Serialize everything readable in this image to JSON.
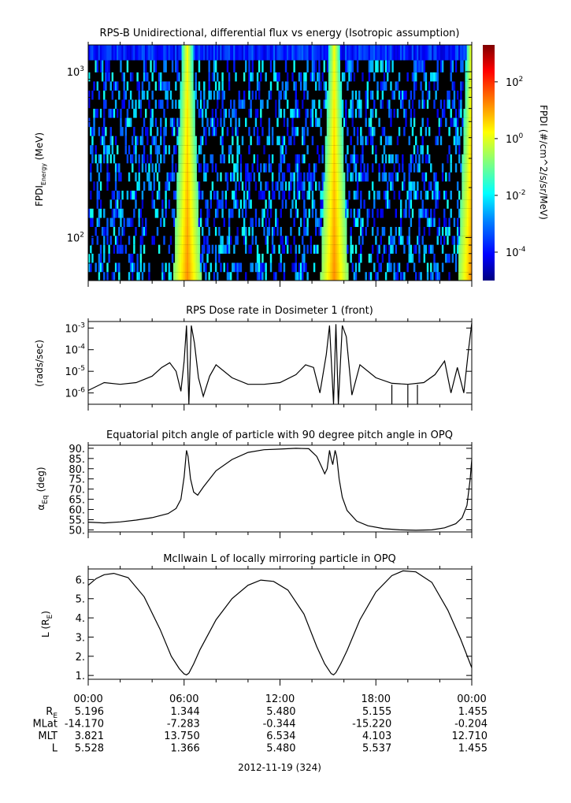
{
  "chart_data": [
    {
      "type": "heatmap",
      "title": "RPS-B  Unidirectional, differential flux vs energy (Isotropic assumption)",
      "ylabel": {
        "main": "FPDI",
        "sub": "Energy",
        "unit": " (MeV)"
      },
      "yscale": "log",
      "ylim": [
        55,
        1450
      ],
      "ytick_labels": [
        {
          "value": 100,
          "base": "10",
          "exp": "2"
        },
        {
          "value": 1000,
          "base": "10",
          "exp": "3"
        }
      ],
      "energy_channels_mev": [
        58,
        66,
        75,
        85,
        96,
        109,
        123,
        140,
        159,
        180,
        204,
        232,
        263,
        298,
        338,
        384,
        436,
        494,
        561,
        636,
        722,
        819,
        930,
        1055,
        1300
      ],
      "xlim_hours": [
        0,
        24
      ],
      "flux_peaks_hours": [
        6.2,
        15.4,
        24.0
      ],
      "colorbar": {
        "label": "FPDI (#/cm^2/s/sr/MeV)",
        "scale": "log",
        "range": [
          1e-05,
          2000
        ],
        "tick_labels": [
          {
            "value": 0.0001,
            "base": "10",
            "exp": "-4"
          },
          {
            "value": 0.01,
            "base": "10",
            "exp": "-2"
          },
          {
            "value": 1,
            "base": "10",
            "exp": "0"
          },
          {
            "value": 100,
            "base": "10",
            "exp": "2"
          }
        ],
        "colors": [
          "#00007f",
          "#0000ff",
          "#007fff",
          "#00ffff",
          "#7fff7f",
          "#ffff00",
          "#ff7f00",
          "#ff0000",
          "#7f0000"
        ]
      }
    },
    {
      "type": "line",
      "title": "RPS  Dose rate in Dosimeter 1 (front)",
      "ylabel": "(rads/sec)",
      "yscale": "log",
      "ylim": [
        3e-07,
        0.002
      ],
      "ytick_labels": [
        {
          "value": 0.001,
          "base": "10",
          "exp": "-3"
        },
        {
          "value": 0.0001,
          "base": "10",
          "exp": "-4"
        },
        {
          "value": 1e-05,
          "base": "10",
          "exp": "-5"
        },
        {
          "value": 1e-06,
          "base": "10",
          "exp": "-6"
        }
      ],
      "x": [
        0,
        1,
        2,
        3,
        4,
        4.6,
        5.1,
        5.5,
        5.8,
        6.0,
        6.15,
        6.3,
        6.45,
        6.65,
        6.9,
        7.2,
        7.6,
        8.0,
        9,
        10,
        11,
        12,
        13,
        13.6,
        14.1,
        14.5,
        14.9,
        15.1,
        15.35,
        15.5,
        15.65,
        15.9,
        16.15,
        16.5,
        17.0,
        18,
        19,
        20,
        21,
        21.7,
        22.3,
        22.7,
        23.1,
        23.5,
        23.8,
        24.0
      ],
      "y": [
        1.3e-06,
        3e-06,
        2.5e-06,
        3e-06,
        6e-06,
        1.5e-05,
        2.5e-05,
        1e-05,
        1.2e-06,
        3e-05,
        0.0013,
        3e-07,
        0.0013,
        0.0002,
        5e-06,
        7e-07,
        6e-06,
        2e-05,
        5e-06,
        2.5e-06,
        2.5e-06,
        3e-06,
        7e-06,
        2e-05,
        1.5e-05,
        1e-06,
        6e-05,
        0.0013,
        3e-07,
        0.0015,
        3e-07,
        0.0013,
        0.0004,
        8e-07,
        2e-05,
        5e-06,
        2.8e-06,
        2.5e-06,
        3e-06,
        7e-06,
        3e-05,
        1e-06,
        1.5e-05,
        1e-06,
        0.0001,
        0.0017
      ],
      "spikes_hours": [
        19.0,
        20.0,
        20.6
      ]
    },
    {
      "type": "line",
      "title": "Equatorial pitch angle of particle with 90 degree pitch angle in OPQ",
      "ylabel": {
        "main": "α",
        "sub": "Eq",
        "unit": " (deg)"
      },
      "ylim": [
        49,
        91.5
      ],
      "ytick_labels": [
        "50.",
        "55.",
        "60.",
        "65.",
        "70.",
        "75.",
        "80.",
        "85.",
        "90."
      ],
      "ytick_values": [
        50,
        55,
        60,
        65,
        70,
        75,
        80,
        85,
        90
      ],
      "x": [
        0,
        1,
        2,
        3,
        4,
        5,
        5.5,
        5.8,
        6.0,
        6.15,
        6.25,
        6.4,
        6.6,
        6.85,
        7.2,
        8,
        9,
        10,
        11,
        12,
        13,
        13.8,
        14.3,
        14.6,
        14.8,
        14.95,
        15.1,
        15.2,
        15.3,
        15.45,
        15.55,
        15.7,
        15.9,
        16.2,
        16.8,
        17.5,
        18.5,
        19.5,
        20.5,
        21.5,
        22.3,
        23.0,
        23.4,
        23.7,
        23.9,
        24.0
      ],
      "y": [
        53.8,
        53.4,
        53.9,
        54.8,
        56.0,
        58.0,
        60.5,
        65.0,
        76.0,
        89.0,
        86.0,
        75.0,
        68.5,
        67.0,
        71.0,
        79.0,
        84.5,
        88.0,
        89.3,
        89.6,
        90.0,
        89.8,
        86.0,
        81.0,
        77.5,
        80.0,
        89.0,
        85.0,
        82.0,
        89.0,
        86.0,
        75.0,
        66.0,
        59.5,
        54.3,
        52.0,
        50.6,
        50.0,
        49.8,
        50.0,
        51.0,
        53.0,
        56.0,
        62.0,
        75.0,
        84.5
      ]
    },
    {
      "type": "line",
      "title": "McIlwain L of locally mirroring particle in OPQ",
      "ylabel": {
        "main": "L (R",
        "sub": "E",
        "unit": ")"
      },
      "ylim": [
        0.8,
        6.55
      ],
      "ytick_labels": [
        "1.",
        "2.",
        "3.",
        "4.",
        "5.",
        "6."
      ],
      "ytick_values": [
        1,
        2,
        3,
        4,
        5,
        6
      ],
      "x": [
        0,
        0.5,
        1.0,
        1.6,
        2.5,
        3.5,
        4.5,
        5.2,
        5.7,
        6.0,
        6.15,
        6.3,
        6.6,
        7.0,
        8.0,
        9.0,
        10.0,
        10.8,
        11.6,
        12.5,
        13.5,
        14.3,
        14.8,
        15.2,
        15.35,
        15.5,
        15.8,
        16.2,
        17.0,
        18.0,
        19.0,
        19.7,
        20.5,
        21.5,
        22.5,
        23.3,
        24.0
      ],
      "y": [
        5.7,
        6.05,
        6.25,
        6.32,
        6.1,
        5.1,
        3.4,
        2.0,
        1.35,
        1.08,
        1.03,
        1.12,
        1.6,
        2.35,
        3.9,
        5.0,
        5.7,
        5.97,
        5.9,
        5.45,
        4.2,
        2.5,
        1.6,
        1.1,
        1.03,
        1.15,
        1.6,
        2.3,
        3.9,
        5.35,
        6.2,
        6.45,
        6.4,
        5.85,
        4.4,
        2.9,
        1.4
      ]
    },
    {
      "type": "table",
      "xtick_labels": [
        "00:00",
        "06:00",
        "12:00",
        "18:00",
        "00:00"
      ],
      "xtick_hours": [
        0,
        6,
        12,
        18,
        24
      ],
      "rows": [
        {
          "label": "R",
          "label_sub": "E",
          "values": [
            "5.196",
            "1.344",
            "5.480",
            "5.155",
            "1.455"
          ]
        },
        {
          "label": "MLat",
          "label_sub": "",
          "values": [
            "-14.170",
            "-7.283",
            "-0.344",
            "-15.220",
            "-0.204"
          ]
        },
        {
          "label": "MLT",
          "label_sub": "",
          "values": [
            "3.821",
            "13.750",
            "6.534",
            "4.103",
            "12.710"
          ]
        },
        {
          "label": "L",
          "label_sub": "",
          "values": [
            "5.528",
            "1.366",
            "5.480",
            "5.537",
            "1.455"
          ]
        }
      ],
      "date_label": "2012-11-19 (324)"
    }
  ]
}
